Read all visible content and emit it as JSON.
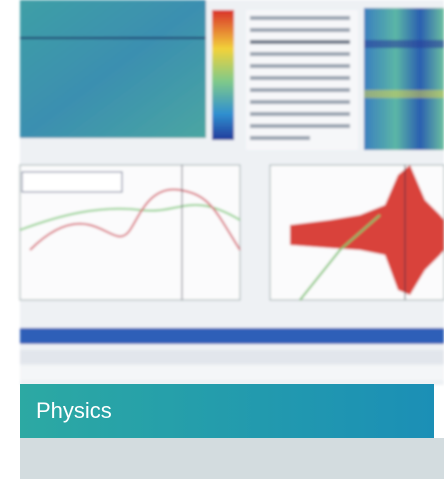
{
  "caption": "Physics"
}
